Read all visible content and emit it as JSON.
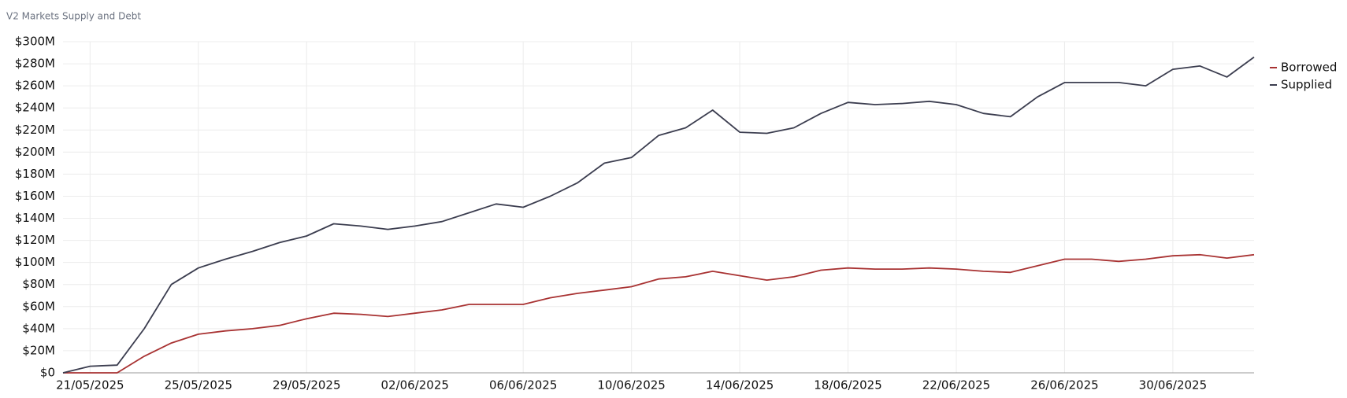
{
  "chart_data": {
    "type": "line",
    "title": "V2 Markets Supply and Debt",
    "x": [
      "20/05/2025",
      "21/05/2025",
      "22/05/2025",
      "23/05/2025",
      "24/05/2025",
      "25/05/2025",
      "26/05/2025",
      "27/05/2025",
      "28/05/2025",
      "29/05/2025",
      "30/05/2025",
      "31/05/2025",
      "01/06/2025",
      "02/06/2025",
      "03/06/2025",
      "04/06/2025",
      "05/06/2025",
      "06/06/2025",
      "07/06/2025",
      "08/06/2025",
      "09/06/2025",
      "10/06/2025",
      "11/06/2025",
      "12/06/2025",
      "13/06/2025",
      "14/06/2025",
      "15/06/2025",
      "16/06/2025",
      "17/06/2025",
      "18/06/2025",
      "19/06/2025",
      "20/06/2025",
      "21/06/2025",
      "22/06/2025",
      "23/06/2025",
      "24/06/2025",
      "25/06/2025",
      "26/06/2025",
      "27/06/2025",
      "28/06/2025",
      "29/06/2025",
      "30/06/2025",
      "01/07/2025",
      "02/07/2025",
      "03/07/2025"
    ],
    "series": [
      {
        "name": "Borrowed",
        "color": "#a83232",
        "values": [
          0,
          0,
          0,
          15,
          27,
          35,
          38,
          40,
          43,
          49,
          54,
          53,
          51,
          54,
          57,
          62,
          62,
          62,
          68,
          72,
          75,
          78,
          85,
          87,
          92,
          88,
          84,
          87,
          93,
          95,
          94,
          94,
          95,
          94,
          92,
          91,
          97,
          103,
          103,
          101,
          103,
          106,
          107,
          104,
          107
        ]
      },
      {
        "name": "Supplied",
        "color": "#3b3d4f",
        "values": [
          0,
          6,
          7,
          40,
          80,
          95,
          103,
          110,
          118,
          124,
          135,
          133,
          130,
          133,
          137,
          145,
          153,
          150,
          160,
          172,
          190,
          195,
          215,
          222,
          238,
          218,
          217,
          222,
          235,
          245,
          243,
          244,
          246,
          243,
          235,
          232,
          250,
          263,
          263,
          263,
          260,
          275,
          278,
          268,
          286
        ]
      }
    ],
    "xlim": [
      "20/05/2025",
      "03/07/2025"
    ],
    "xticks": [
      "21/05/2025",
      "25/05/2025",
      "29/05/2025",
      "02/06/2025",
      "06/06/2025",
      "10/06/2025",
      "14/06/2025",
      "18/06/2025",
      "22/06/2025",
      "26/06/2025",
      "30/06/2025"
    ],
    "ylim": [
      0,
      300
    ],
    "yticks": [
      {
        "value": 0,
        "label": "$0"
      },
      {
        "value": 20,
        "label": "$20M"
      },
      {
        "value": 40,
        "label": "$40M"
      },
      {
        "value": 60,
        "label": "$60M"
      },
      {
        "value": 80,
        "label": "$80M"
      },
      {
        "value": 100,
        "label": "$100M"
      },
      {
        "value": 120,
        "label": "$120M"
      },
      {
        "value": 140,
        "label": "$140M"
      },
      {
        "value": 160,
        "label": "$160M"
      },
      {
        "value": 180,
        "label": "$180M"
      },
      {
        "value": 200,
        "label": "$200M"
      },
      {
        "value": 220,
        "label": "$220M"
      },
      {
        "value": 240,
        "label": "$240M"
      },
      {
        "value": 260,
        "label": "$260M"
      },
      {
        "value": 280,
        "label": "$280M"
      },
      {
        "value": 300,
        "label": "$300M"
      }
    ],
    "grid": true,
    "legend": "right"
  }
}
